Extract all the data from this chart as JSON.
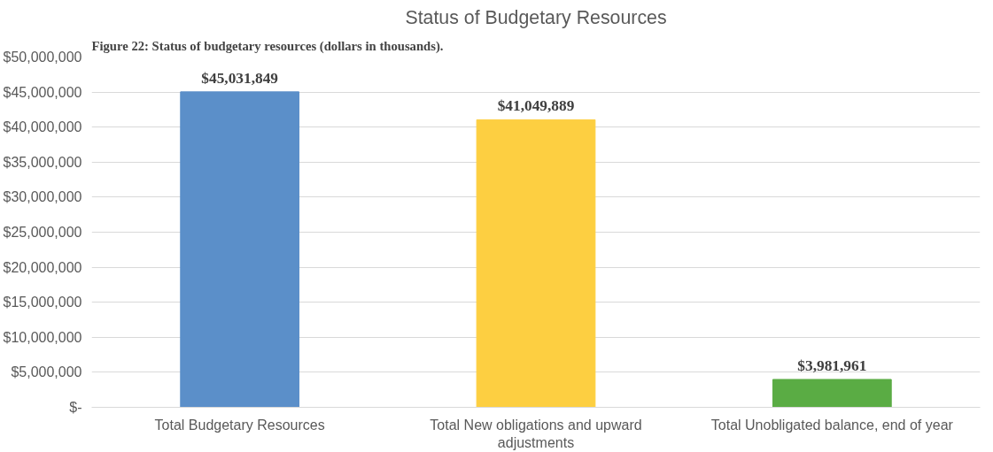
{
  "chart_data": {
    "type": "bar",
    "title": "Status of Budgetary Resources",
    "annotations": [
      "Figure 22: Status of budgetary resources (dollars in thousands)."
    ],
    "categories": [
      "Total Budgetary Resources",
      "Total New obligations and upward adjustments",
      "Total Unobligated balance, end of year"
    ],
    "values": [
      45031849,
      41049889,
      3981961
    ],
    "colors": [
      "#5b8fc9",
      "#fdcf41",
      "#5aac44"
    ],
    "value_labels": [
      "$45,031,849",
      "$41,049,889",
      "$3,981,961"
    ],
    "ylim": [
      0,
      50000000
    ],
    "yticks": [
      {
        "value": 0,
        "label": "$-"
      },
      {
        "value": 5000000,
        "label": "$5,000,000"
      },
      {
        "value": 10000000,
        "label": "$10,000,000"
      },
      {
        "value": 15000000,
        "label": "$15,000,000"
      },
      {
        "value": 20000000,
        "label": "$20,000,000"
      },
      {
        "value": 25000000,
        "label": "$25,000,000"
      },
      {
        "value": 30000000,
        "label": "$30,000,000"
      },
      {
        "value": 35000000,
        "label": "$35,000,000"
      },
      {
        "value": 40000000,
        "label": "$40,000,000"
      },
      {
        "value": 45000000,
        "label": "$45,000,000"
      },
      {
        "value": 50000000,
        "label": "$50,000,000"
      }
    ],
    "grid": "y"
  }
}
